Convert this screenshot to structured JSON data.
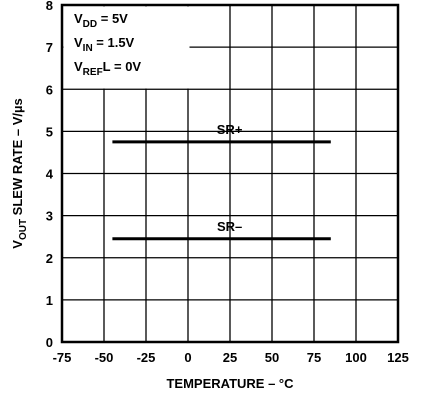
{
  "chart_data": {
    "type": "line",
    "x_label": "TEMPERATURE – °C",
    "y_label": [
      {
        "text": "V"
      },
      {
        "text": "OUT",
        "sub": true
      },
      {
        "text": " SLEW RATE – V/µs"
      }
    ],
    "annotations": [
      [
        {
          "text": "V"
        },
        {
          "text": "DD",
          "sub": true
        },
        {
          "text": " = 5V"
        }
      ],
      [
        {
          "text": "V"
        },
        {
          "text": "IN",
          "sub": true
        },
        {
          "text": " = 1.5V"
        }
      ],
      [
        {
          "text": "V"
        },
        {
          "text": "REF",
          "sub": true
        },
        {
          "text": "L = 0V"
        }
      ]
    ],
    "x": [
      -45,
      85
    ],
    "series": [
      {
        "name": "SR+",
        "color": "#000000",
        "values": [
          4.75,
          4.75
        ]
      },
      {
        "name": "SR–",
        "color": "#000000",
        "values": [
          2.45,
          2.45
        ]
      }
    ],
    "xlim": [
      -75,
      125
    ],
    "xticks": [
      -75,
      -50,
      -25,
      0,
      25,
      50,
      75,
      100,
      125
    ],
    "ylim": [
      0,
      8
    ],
    "yticks": [
      0,
      1,
      2,
      3,
      4,
      5,
      6,
      7,
      8
    ],
    "grid": true
  }
}
